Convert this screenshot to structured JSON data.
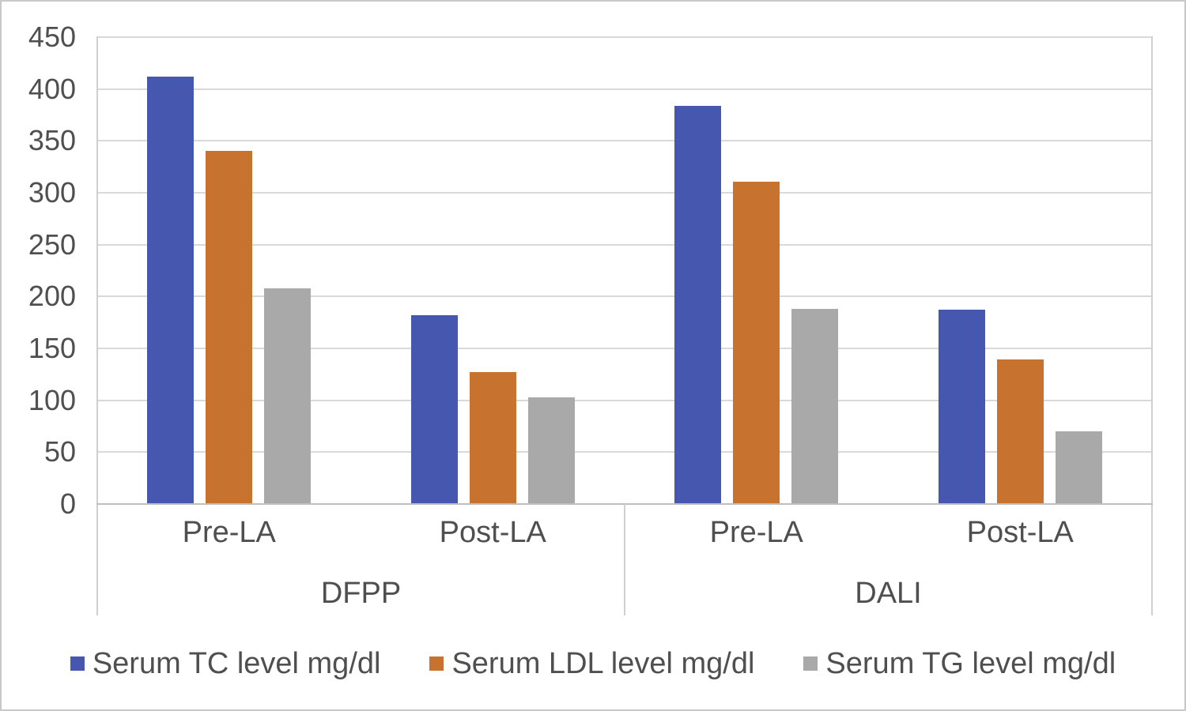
{
  "figure": {
    "background": "#ffffff",
    "border_color": "#c8c8c8",
    "gridline_color": "#d9d9d9",
    "axis_line_color": "#bfbfbf",
    "text_color": "#4f4f4f"
  },
  "chart_data": {
    "type": "bar",
    "title": "",
    "xlabel": "",
    "ylabel": "",
    "ylim": [
      0,
      450
    ],
    "yticks": [
      0,
      50,
      100,
      150,
      200,
      250,
      300,
      350,
      400,
      450
    ],
    "grid": "horizontal",
    "legend_position": "bottom",
    "group_labels": [
      "DFPP",
      "DALI"
    ],
    "categories": [
      {
        "group": "DFPP",
        "phase": "Pre-LA"
      },
      {
        "group": "DFPP",
        "phase": "Post-LA"
      },
      {
        "group": "DALI",
        "phase": "Pre-LA"
      },
      {
        "group": "DALI",
        "phase": "Post-LA"
      }
    ],
    "series": [
      {
        "name": "Serum TC level mg/dl",
        "color": "#4557ae",
        "values": [
          412,
          182,
          384,
          187
        ]
      },
      {
        "name": "Serum LDL level mg/dl",
        "color": "#c8722f",
        "values": [
          340,
          127,
          311,
          139
        ]
      },
      {
        "name": "Serum TG level mg/dl",
        "color": "#a9a9a9",
        "values": [
          208,
          103,
          188,
          70
        ]
      }
    ]
  }
}
